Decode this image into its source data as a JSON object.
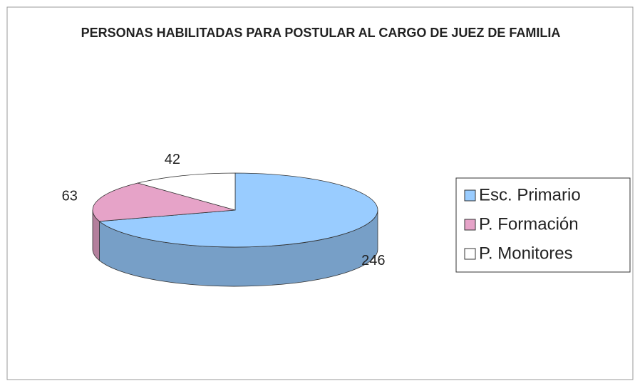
{
  "chart_data": {
    "type": "pie",
    "title": "PERSONAS HABILITADAS PARA POSTULAR AL CARGO DE JUEZ DE FAMILIA",
    "categories": [
      "Esc. Primario",
      "P. Formación",
      "P. Monitores"
    ],
    "values": [
      246,
      63,
      42
    ],
    "colors": [
      "#99ccff",
      "#e6a3c8",
      "#ffffff"
    ],
    "legend": "right"
  }
}
